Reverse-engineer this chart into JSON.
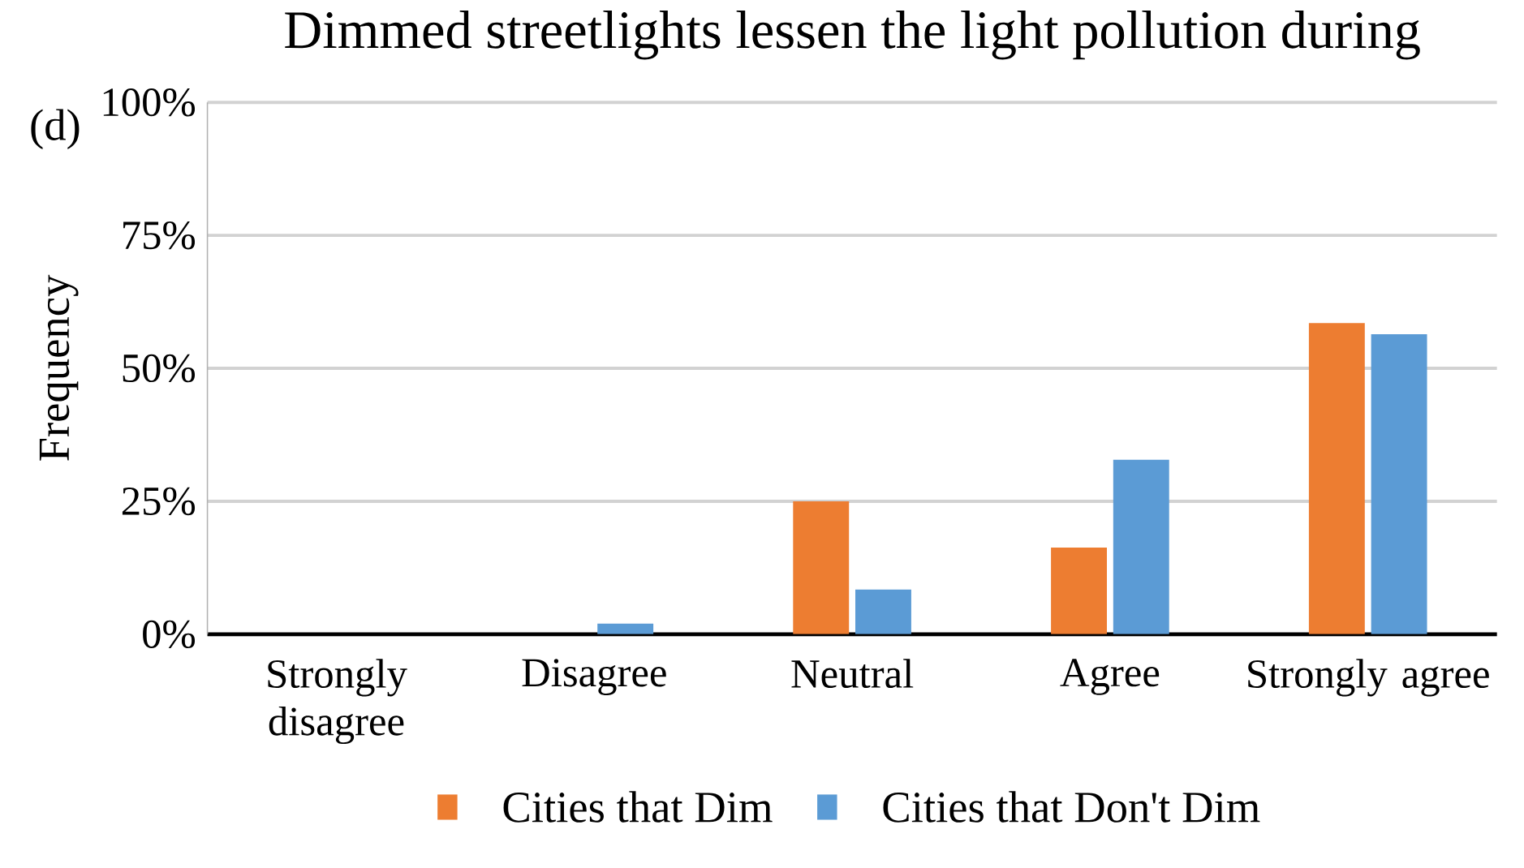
{
  "chart_data": {
    "type": "bar",
    "title": "Dimmed streetlights lessen the light pollution during",
    "ylabel": "Frequency",
    "annotations": [
      "(d)"
    ],
    "categories": [
      "Strongly disagree",
      "Disagree",
      "Neutral",
      "Agree",
      "Strongly agree"
    ],
    "series": [
      {
        "name": "Cities that Dim",
        "color": "#ed7d31",
        "values": [
          0,
          0,
          25,
          16.3,
          58.5
        ]
      },
      {
        "name": "Cities that Don't Dim",
        "color": "#5b9bd5",
        "values": [
          0,
          2,
          8.4,
          32.8,
          56.4
        ]
      }
    ],
    "ylim": [
      0,
      100
    ],
    "yticks": [
      {
        "value": 0,
        "label": "0%"
      },
      {
        "value": 25,
        "label": "25%"
      },
      {
        "value": 50,
        "label": "50%"
      },
      {
        "value": 75,
        "label": "75%"
      },
      {
        "value": 100,
        "label": "100%"
      }
    ],
    "grid": "y",
    "legend": "bottom"
  }
}
